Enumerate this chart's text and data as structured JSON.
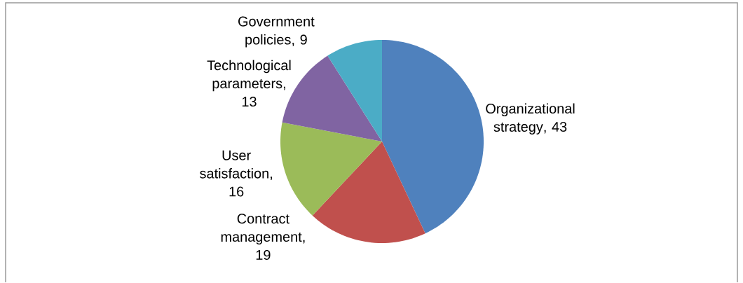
{
  "chart_data": {
    "type": "pie",
    "categories": [
      "Organizational strategy",
      "Contract management",
      "User satisfaction",
      "Technological parameters",
      "Government policies"
    ],
    "values": [
      43,
      19,
      16,
      13,
      9
    ],
    "value_labels": [
      ", 43",
      ", 19",
      ", 16",
      ", 13",
      ", 9"
    ],
    "colors": [
      "#4f81bd",
      "#c0504d",
      "#9bbb59",
      "#8064a2",
      "#4bacc6"
    ]
  }
}
